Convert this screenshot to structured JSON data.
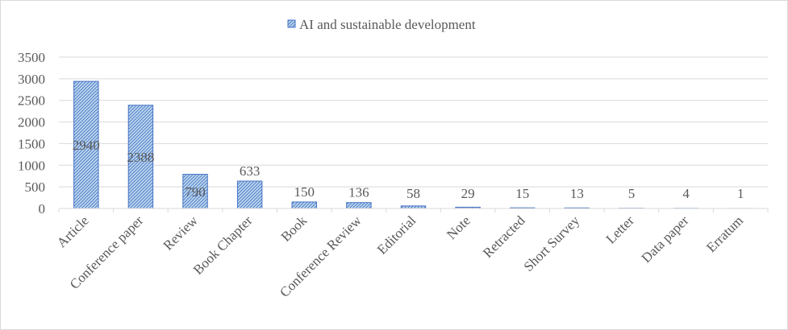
{
  "chart_data": {
    "type": "bar",
    "categories": [
      "Article",
      "Conference paper",
      "Review",
      "Book Chapter",
      "Book",
      "Conference Review",
      "Editorial",
      "Note",
      "Retracted",
      "Short Survey",
      "Letter",
      "Data paper",
      "Erratum"
    ],
    "series": [
      {
        "name": "AI and sustainable development",
        "values": [
          2940,
          2388,
          790,
          633,
          150,
          136,
          58,
          29,
          15,
          13,
          5,
          4,
          1
        ],
        "color": "#4472c4",
        "fill": "#bdd7ee",
        "pattern": "diagonal-hatch"
      }
    ],
    "data_labels": [
      "2940",
      "2388",
      "790",
      "633",
      "150",
      "136",
      "58",
      "29",
      "15",
      "13",
      "5",
      "4",
      "1"
    ],
    "ylim": [
      0,
      3500
    ],
    "yticks": [
      "0",
      "500",
      "1000",
      "1500",
      "2000",
      "2500",
      "3000",
      "3500"
    ],
    "grid": true,
    "legend_position": "top-center",
    "xlabel": "",
    "ylabel": ""
  }
}
